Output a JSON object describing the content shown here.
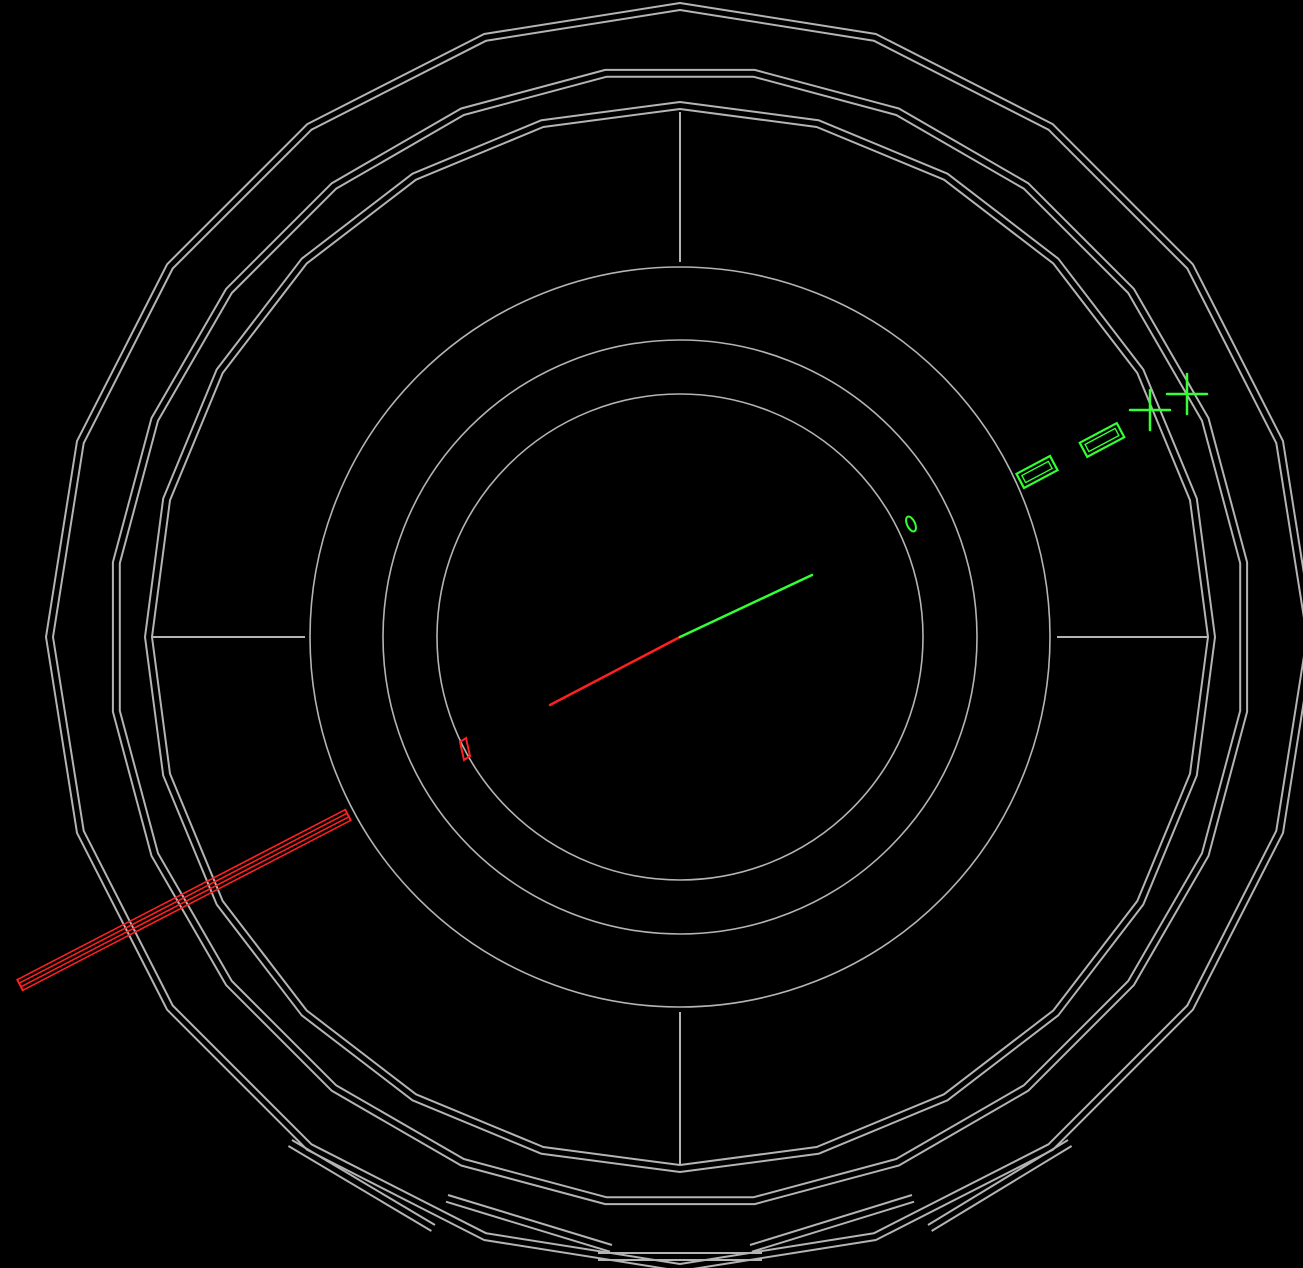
{
  "scene": {
    "background": "#000000",
    "detector_color": "#b4b4b4",
    "track_a_color": "#ff2020",
    "track_b_color": "#33ff33",
    "event": {
      "track_a": {
        "color_name": "red",
        "has_calorimeter_deposit": true
      },
      "track_b": {
        "color_name": "green",
        "muon_chamber_hits": 2,
        "muon_crosses": 2
      }
    }
  }
}
